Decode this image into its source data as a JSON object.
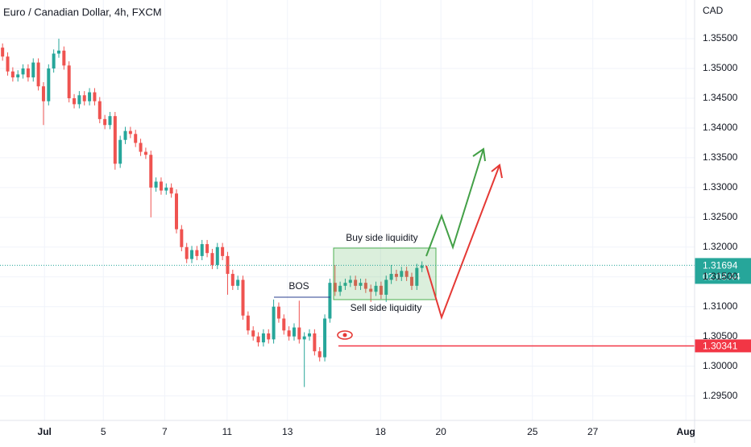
{
  "chart_data": {
    "type": "candlestick",
    "title": "Euro / Canadian Dollar, 4h, FXCM",
    "currency": "CAD",
    "up_color": "#26a69a",
    "down_color": "#ef5350",
    "xlim": [
      -0.5,
      135.3
    ],
    "xticks": [
      {
        "value": 8.2,
        "label": "Jul"
      },
      {
        "value": 19.7,
        "label": "5"
      },
      {
        "value": 31.7,
        "label": "7"
      },
      {
        "value": 43.9,
        "label": "11"
      },
      {
        "value": 55.7,
        "label": "13"
      },
      {
        "value": 73.9,
        "label": "18"
      },
      {
        "value": 85.7,
        "label": "20"
      },
      {
        "value": 103.6,
        "label": "25"
      },
      {
        "value": 115.4,
        "label": "27"
      },
      {
        "value": 133.6,
        "label": "Aug"
      }
    ],
    "ylim": [
      1.29089,
      1.3615
    ],
    "yticks": [
      {
        "value": 1.295,
        "label": "1.29500"
      },
      {
        "value": 1.3,
        "label": "1.30000"
      },
      {
        "value": 1.305,
        "label": "1.30500"
      },
      {
        "value": 1.31,
        "label": "1.31000"
      },
      {
        "value": 1.315,
        "label": "1.31500"
      },
      {
        "value": 1.32,
        "label": "1.32000"
      },
      {
        "value": 1.325,
        "label": "1.32500"
      },
      {
        "value": 1.33,
        "label": "1.33000"
      },
      {
        "value": 1.335,
        "label": "1.33500"
      },
      {
        "value": 1.34,
        "label": "1.34000"
      },
      {
        "value": 1.345,
        "label": "1.34500"
      },
      {
        "value": 1.35,
        "label": "1.35000"
      },
      {
        "value": 1.355,
        "label": "1.35500"
      }
    ],
    "open": [
      1.3535,
      1.352,
      1.3495,
      1.3485,
      1.349,
      1.35,
      1.3485,
      1.351,
      1.347,
      1.3445,
      1.35,
      1.3525,
      1.353,
      1.3505,
      1.345,
      1.344,
      1.3455,
      1.3445,
      1.346,
      1.3445,
      1.3415,
      1.3405,
      1.342,
      1.334,
      1.338,
      1.3395,
      1.339,
      1.3375,
      1.336,
      1.3355,
      1.33,
      1.331,
      1.3295,
      1.33,
      1.329,
      1.323,
      1.32,
      1.318,
      1.3195,
      1.3185,
      1.3205,
      1.319,
      1.317,
      1.32,
      1.3185,
      1.3155,
      1.3135,
      1.3145,
      1.3085,
      1.306,
      1.305,
      1.304,
      1.3055,
      1.3045,
      1.31,
      1.308,
      1.306,
      1.305,
      1.3065,
      1.3045,
      1.305,
      1.3055,
      1.3025,
      1.3015,
      1.308,
      1.314,
      1.3125,
      1.3135,
      1.314,
      1.3145,
      1.3135,
      1.314,
      1.313,
      1.3125,
      1.3135,
      1.312,
      1.3145,
      1.3155,
      1.315,
      1.316,
      1.315,
      1.3135,
      1.3165
    ],
    "high": [
      1.3542,
      1.3527,
      1.3502,
      1.3497,
      1.3507,
      1.3507,
      1.3517,
      1.3517,
      1.3477,
      1.3507,
      1.3532,
      1.355,
      1.3537,
      1.3512,
      1.3457,
      1.3462,
      1.3462,
      1.3467,
      1.3467,
      1.3452,
      1.3422,
      1.3427,
      1.3427,
      1.3387,
      1.3402,
      1.3402,
      1.3397,
      1.3382,
      1.3367,
      1.3362,
      1.3317,
      1.3317,
      1.3307,
      1.3307,
      1.3297,
      1.3237,
      1.3207,
      1.3202,
      1.3202,
      1.3212,
      1.3212,
      1.3197,
      1.3207,
      1.3207,
      1.3192,
      1.3162,
      1.3152,
      1.3152,
      1.3092,
      1.3067,
      1.3057,
      1.3062,
      1.3062,
      1.3112,
      1.3107,
      1.3087,
      1.3067,
      1.3072,
      1.311,
      1.3057,
      1.3062,
      1.3062,
      1.3032,
      1.3087,
      1.3147,
      1.317,
      1.3142,
      1.3147,
      1.3152,
      1.3152,
      1.3147,
      1.3147,
      1.3137,
      1.3142,
      1.3142,
      1.3152,
      1.317,
      1.3162,
      1.3167,
      1.3167,
      1.3157,
      1.3172,
      1.3176
    ],
    "low": [
      1.3513,
      1.3488,
      1.3478,
      1.3478,
      1.3483,
      1.3478,
      1.3478,
      1.3463,
      1.3405,
      1.3438,
      1.3493,
      1.3518,
      1.3498,
      1.3443,
      1.3433,
      1.3433,
      1.3438,
      1.3438,
      1.3438,
      1.3408,
      1.3398,
      1.3398,
      1.333,
      1.3333,
      1.3373,
      1.3383,
      1.3368,
      1.3353,
      1.3348,
      1.325,
      1.3293,
      1.3288,
      1.3288,
      1.3283,
      1.3223,
      1.3193,
      1.3173,
      1.3173,
      1.3178,
      1.3178,
      1.3183,
      1.3163,
      1.3163,
      1.3178,
      1.312,
      1.3128,
      1.3128,
      1.3078,
      1.3053,
      1.3043,
      1.3033,
      1.3033,
      1.3038,
      1.3038,
      1.3073,
      1.3053,
      1.3043,
      1.3043,
      1.3038,
      1.2965,
      1.3043,
      1.3018,
      1.3008,
      1.3008,
      1.3073,
      1.3118,
      1.3118,
      1.3128,
      1.3133,
      1.3128,
      1.3128,
      1.3123,
      1.3108,
      1.3118,
      1.3113,
      1.3108,
      1.3138,
      1.3143,
      1.3143,
      1.3143,
      1.3128,
      1.3128,
      1.3158
    ],
    "close": [
      1.352,
      1.3495,
      1.3485,
      1.349,
      1.35,
      1.3485,
      1.351,
      1.347,
      1.3445,
      1.35,
      1.3525,
      1.353,
      1.3505,
      1.345,
      1.344,
      1.3455,
      1.3445,
      1.346,
      1.3445,
      1.3415,
      1.3405,
      1.342,
      1.334,
      1.338,
      1.3395,
      1.339,
      1.3375,
      1.336,
      1.3355,
      1.33,
      1.331,
      1.3295,
      1.33,
      1.329,
      1.323,
      1.32,
      1.318,
      1.3195,
      1.3185,
      1.3205,
      1.319,
      1.317,
      1.32,
      1.3185,
      1.3155,
      1.3135,
      1.3145,
      1.3085,
      1.306,
      1.305,
      1.304,
      1.3055,
      1.3045,
      1.31,
      1.308,
      1.306,
      1.305,
      1.3065,
      1.3045,
      1.305,
      1.3055,
      1.3025,
      1.3015,
      1.308,
      1.314,
      1.3125,
      1.3135,
      1.314,
      1.3145,
      1.3135,
      1.314,
      1.313,
      1.3125,
      1.3135,
      1.312,
      1.3145,
      1.3155,
      1.315,
      1.316,
      1.315,
      1.3135,
      1.3165,
      1.3169
    ],
    "last_price": {
      "value": 1.31694,
      "countdown": "02:08:44",
      "color": "#26a69a"
    },
    "level": {
      "value": 1.30341,
      "color": "#f23645"
    },
    "annotations": {
      "bos": "BOS",
      "buy_side": "Buy side liquidity",
      "sell_side": "Sell side liquidity"
    }
  }
}
